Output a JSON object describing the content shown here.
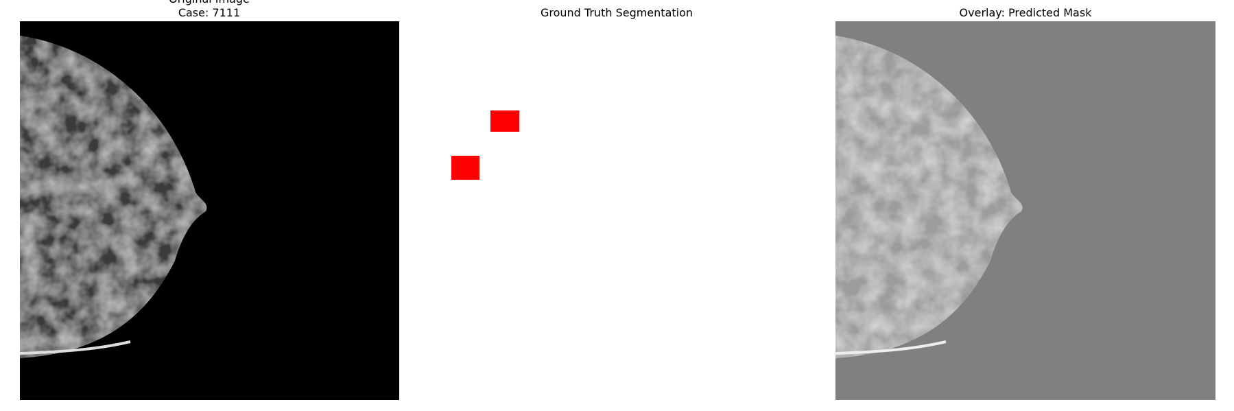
{
  "panels": [
    {
      "title": "Original Image",
      "subtitle": "Case: 7111"
    },
    {
      "title": "Ground Truth Segmentation"
    },
    {
      "title": "Overlay: Predicted Mask"
    }
  ]
}
